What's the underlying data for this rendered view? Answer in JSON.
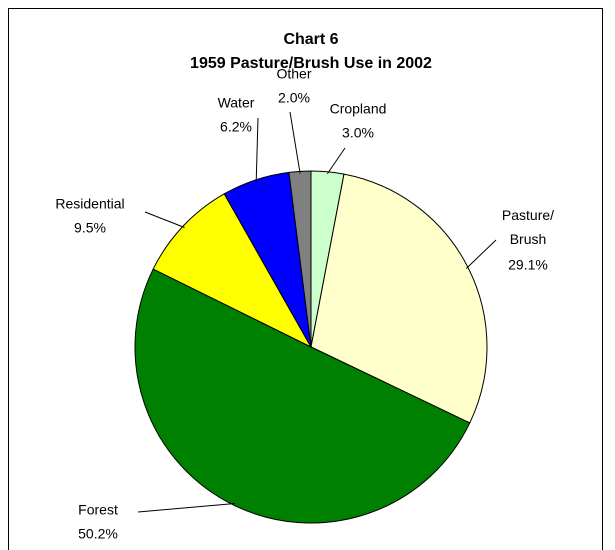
{
  "chart_data": {
    "type": "pie",
    "title": "Chart 6",
    "subtitle": "1959 Pasture/Brush Use in 2002",
    "categories": [
      "Cropland",
      "Pasture/Brush",
      "Forest",
      "Residential",
      "Water",
      "Other"
    ],
    "values": [
      3.0,
      29.1,
      50.2,
      9.5,
      6.2,
      2.0
    ],
    "value_labels": [
      "3.0%",
      "29.1%",
      "50.2%",
      "9.5%",
      "6.2%",
      "2.0%"
    ],
    "colors": [
      "#ccffcc",
      "#ffffcc",
      "#008000",
      "#ffff00",
      "#0000ff",
      "#808080"
    ]
  }
}
